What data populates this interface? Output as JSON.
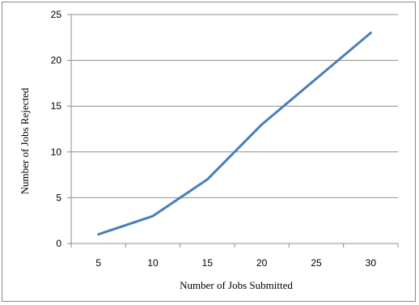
{
  "chart_data": {
    "type": "line",
    "title": "",
    "xlabel": "Number of Jobs Submitted",
    "ylabel": "Number of Jobs Rejected",
    "categories": [
      "5",
      "10",
      "15",
      "20",
      "25",
      "30"
    ],
    "x": [
      5,
      10,
      15,
      20,
      25,
      30
    ],
    "series": [
      {
        "values": [
          1,
          3,
          7,
          13,
          18,
          23
        ],
        "color": "#4a7ebb"
      }
    ],
    "ylim": [
      0,
      25
    ],
    "yticks": [
      0,
      5,
      10,
      15,
      20,
      25
    ],
    "grid": "horizontal",
    "legend": "none"
  }
}
